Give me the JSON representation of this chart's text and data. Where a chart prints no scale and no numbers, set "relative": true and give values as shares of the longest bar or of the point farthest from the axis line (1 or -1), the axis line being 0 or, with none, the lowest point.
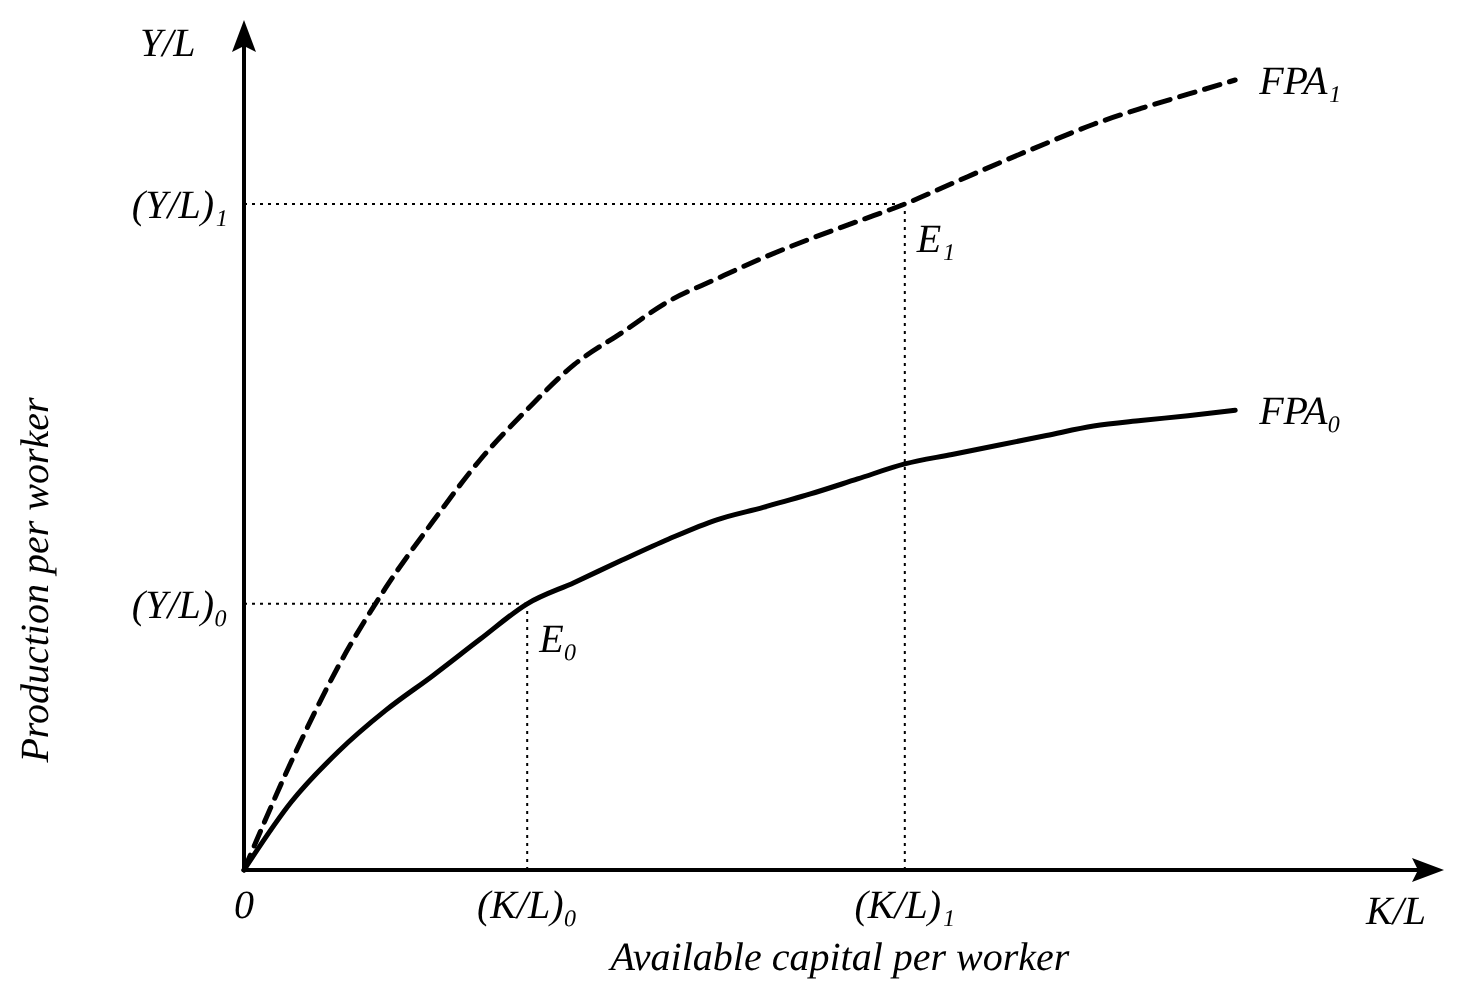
{
  "chart_data": {
    "type": "line",
    "relative": true,
    "xlabel": "Available capital per worker",
    "ylabel": "Production per worker",
    "categories": [
      "0",
      null,
      null,
      null,
      null,
      null,
      "(K/L)₀",
      null,
      null,
      null,
      null,
      null,
      null,
      null,
      "(K/L)₁",
      null,
      null,
      null,
      null,
      null,
      null,
      null,
      null,
      null,
      null,
      null
    ],
    "annotations": [
      "K/L",
      "Y/L",
      {
        "text": "E₀",
        "x": "(K/L)₀",
        "y": 0.337
      },
      {
        "text": "E₁",
        "x": "(K/L)₁",
        "y": 0.843
      }
    ],
    "series": [
      {
        "name": "FPA₁",
        "color": "#000000",
        "line_style": "dashed",
        "values": [
          0,
          0.137,
          0.258,
          0.357,
          0.441,
          0.519,
          0.583,
          0.64,
          0.68,
          0.72,
          0.748,
          0.775,
          0.799,
          0.821,
          0.843,
          0.869,
          0.895,
          0.92,
          0.944,
          0.964,
          0.982,
          1,
          null,
          null,
          null,
          null
        ]
      },
      {
        "name": "FPA₀",
        "color": "#000000",
        "line_style": "solid",
        "values": [
          0,
          0.086,
          0.15,
          0.202,
          0.246,
          0.292,
          0.337,
          0.364,
          0.392,
          0.419,
          0.443,
          0.459,
          0.476,
          0.495,
          0.514,
          0.526,
          0.538,
          0.55,
          0.562,
          0.569,
          0.575,
          0.582,
          null,
          null,
          null,
          null
        ]
      }
    ],
    "ref_lines": [
      {
        "axis": "y",
        "value": 0.337,
        "label": "(Y/L)₀",
        "line_style": "dotted"
      },
      {
        "axis": "y",
        "value": 0.843,
        "label": "(Y/L)₁",
        "line_style": "dotted"
      }
    ]
  }
}
